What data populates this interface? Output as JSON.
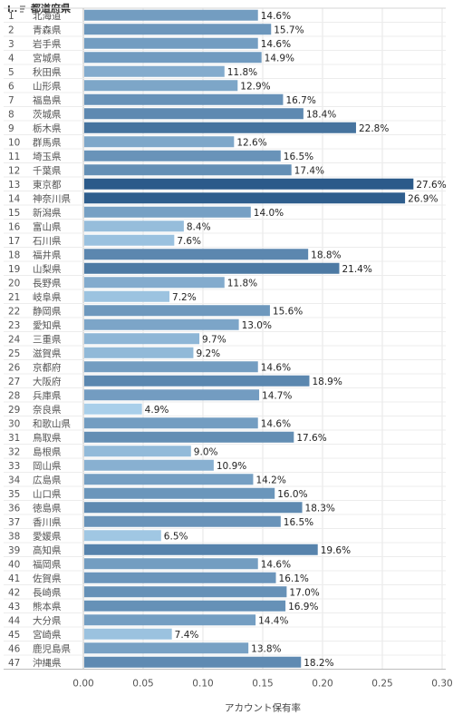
{
  "header": {
    "code_col": "I..",
    "name_col": "都道府県"
  },
  "chart_data": {
    "type": "bar",
    "orientation": "horizontal",
    "xlabel": "アカウント保有率",
    "xlim": [
      0,
      0.3
    ],
    "ticks": [
      "0.00",
      "0.05",
      "0.10",
      "0.15",
      "0.20",
      "0.25",
      "0.30"
    ],
    "grid": true,
    "color_scale": {
      "low": "#a9cfea",
      "high": "#2b5a8a"
    },
    "rows": [
      {
        "id": "1",
        "name": "北海道",
        "value": 0.146,
        "label": "14.6%"
      },
      {
        "id": "2",
        "name": "青森県",
        "value": 0.157,
        "label": "15.7%"
      },
      {
        "id": "3",
        "name": "岩手県",
        "value": 0.146,
        "label": "14.6%"
      },
      {
        "id": "4",
        "name": "宮城県",
        "value": 0.149,
        "label": "14.9%"
      },
      {
        "id": "5",
        "name": "秋田県",
        "value": 0.118,
        "label": "11.8%"
      },
      {
        "id": "6",
        "name": "山形県",
        "value": 0.129,
        "label": "12.9%"
      },
      {
        "id": "7",
        "name": "福島県",
        "value": 0.167,
        "label": "16.7%"
      },
      {
        "id": "8",
        "name": "茨城県",
        "value": 0.184,
        "label": "18.4%"
      },
      {
        "id": "9",
        "name": "栃木県",
        "value": 0.228,
        "label": "22.8%"
      },
      {
        "id": "10",
        "name": "群馬県",
        "value": 0.126,
        "label": "12.6%"
      },
      {
        "id": "11",
        "name": "埼玉県",
        "value": 0.165,
        "label": "16.5%"
      },
      {
        "id": "12",
        "name": "千葉県",
        "value": 0.174,
        "label": "17.4%"
      },
      {
        "id": "13",
        "name": "東京都",
        "value": 0.276,
        "label": "27.6%"
      },
      {
        "id": "14",
        "name": "神奈川県",
        "value": 0.269,
        "label": "26.9%"
      },
      {
        "id": "15",
        "name": "新潟県",
        "value": 0.14,
        "label": "14.0%"
      },
      {
        "id": "16",
        "name": "富山県",
        "value": 0.084,
        "label": "8.4%"
      },
      {
        "id": "17",
        "name": "石川県",
        "value": 0.076,
        "label": "7.6%"
      },
      {
        "id": "18",
        "name": "福井県",
        "value": 0.188,
        "label": "18.8%"
      },
      {
        "id": "19",
        "name": "山梨県",
        "value": 0.214,
        "label": "21.4%"
      },
      {
        "id": "20",
        "name": "長野県",
        "value": 0.118,
        "label": "11.8%"
      },
      {
        "id": "21",
        "name": "岐阜県",
        "value": 0.072,
        "label": "7.2%"
      },
      {
        "id": "22",
        "name": "静岡県",
        "value": 0.156,
        "label": "15.6%"
      },
      {
        "id": "23",
        "name": "愛知県",
        "value": 0.13,
        "label": "13.0%"
      },
      {
        "id": "24",
        "name": "三重県",
        "value": 0.097,
        "label": "9.7%"
      },
      {
        "id": "25",
        "name": "滋賀県",
        "value": 0.092,
        "label": "9.2%"
      },
      {
        "id": "26",
        "name": "京都府",
        "value": 0.146,
        "label": "14.6%"
      },
      {
        "id": "27",
        "name": "大阪府",
        "value": 0.189,
        "label": "18.9%"
      },
      {
        "id": "28",
        "name": "兵庫県",
        "value": 0.147,
        "label": "14.7%"
      },
      {
        "id": "29",
        "name": "奈良県",
        "value": 0.049,
        "label": "4.9%"
      },
      {
        "id": "30",
        "name": "和歌山県",
        "value": 0.146,
        "label": "14.6%"
      },
      {
        "id": "31",
        "name": "鳥取県",
        "value": 0.176,
        "label": "17.6%"
      },
      {
        "id": "32",
        "name": "島根県",
        "value": 0.09,
        "label": "9.0%"
      },
      {
        "id": "33",
        "name": "岡山県",
        "value": 0.109,
        "label": "10.9%"
      },
      {
        "id": "34",
        "name": "広島県",
        "value": 0.142,
        "label": "14.2%"
      },
      {
        "id": "35",
        "name": "山口県",
        "value": 0.16,
        "label": "16.0%"
      },
      {
        "id": "36",
        "name": "徳島県",
        "value": 0.183,
        "label": "18.3%"
      },
      {
        "id": "37",
        "name": "香川県",
        "value": 0.165,
        "label": "16.5%"
      },
      {
        "id": "38",
        "name": "愛媛県",
        "value": 0.065,
        "label": "6.5%"
      },
      {
        "id": "39",
        "name": "高知県",
        "value": 0.196,
        "label": "19.6%"
      },
      {
        "id": "40",
        "name": "福岡県",
        "value": 0.146,
        "label": "14.6%"
      },
      {
        "id": "41",
        "name": "佐賀県",
        "value": 0.161,
        "label": "16.1%"
      },
      {
        "id": "42",
        "name": "長崎県",
        "value": 0.17,
        "label": "17.0%"
      },
      {
        "id": "43",
        "name": "熊本県",
        "value": 0.169,
        "label": "16.9%"
      },
      {
        "id": "44",
        "name": "大分県",
        "value": 0.144,
        "label": "14.4%"
      },
      {
        "id": "45",
        "name": "宮崎県",
        "value": 0.074,
        "label": "7.4%"
      },
      {
        "id": "46",
        "name": "鹿児島県",
        "value": 0.138,
        "label": "13.8%"
      },
      {
        "id": "47",
        "name": "沖縄県",
        "value": 0.182,
        "label": "18.2%"
      }
    ]
  }
}
